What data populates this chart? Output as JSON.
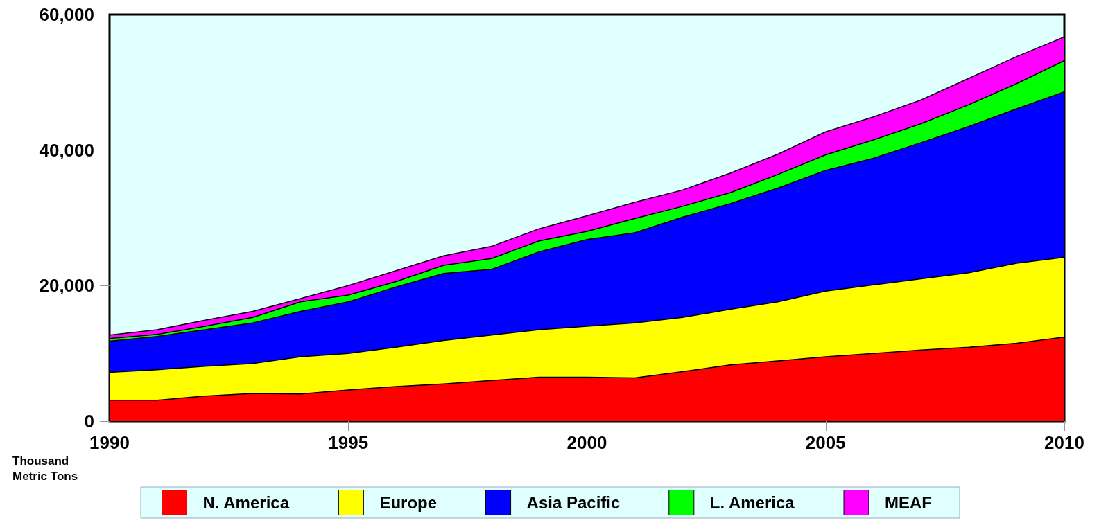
{
  "chart_data": {
    "type": "area",
    "stacked": true,
    "ylabel": "Thousand Metric Tons",
    "x": [
      1990,
      1991,
      1992,
      1993,
      1994,
      1995,
      1996,
      1997,
      1998,
      1999,
      2000,
      2001,
      2002,
      2003,
      2004,
      2005,
      2006,
      2007,
      2008,
      2009,
      2010
    ],
    "series": [
      {
        "name": "N. America",
        "color": "#ff0000",
        "values": [
          3100,
          3100,
          3700,
          4100,
          4000,
          4600,
          5100,
          5500,
          6000,
          6500,
          6500,
          6400,
          7300,
          8300,
          8900,
          9500,
          10000,
          10500,
          10900,
          11500,
          12400
        ]
      },
      {
        "name": "Europe",
        "color": "#ffff00",
        "values": [
          4100,
          4500,
          4400,
          4400,
          5500,
          5400,
          5800,
          6400,
          6700,
          7000,
          7500,
          8100,
          8000,
          8200,
          8700,
          9700,
          10100,
          10500,
          11000,
          11800,
          11800
        ]
      },
      {
        "name": "Asia Pacific",
        "color": "#0000ff",
        "values": [
          4600,
          4900,
          5400,
          6000,
          6700,
          7600,
          8900,
          9900,
          9700,
          11500,
          12800,
          13300,
          14800,
          15600,
          16800,
          17800,
          18700,
          20100,
          21600,
          22800,
          24400
        ]
      },
      {
        "name": "L. America",
        "color": "#00ff00",
        "values": [
          400,
          300,
          500,
          800,
          1400,
          1000,
          800,
          1200,
          1600,
          1600,
          1200,
          2100,
          1600,
          1600,
          2000,
          2300,
          2700,
          2800,
          3200,
          3700,
          4600
        ]
      },
      {
        "name": "MEAF",
        "color": "#ff00ff",
        "values": [
          500,
          700,
          900,
          900,
          500,
          1400,
          1600,
          1400,
          1800,
          1800,
          2300,
          2400,
          2400,
          2900,
          3000,
          3400,
          3400,
          3500,
          3900,
          4000,
          3500
        ]
      }
    ],
    "xlim": [
      1990,
      2010
    ],
    "xticks": [
      1990,
      1995,
      2000,
      2005,
      2010
    ],
    "ylim": [
      0,
      60000
    ],
    "yticks": [
      {
        "value": 0,
        "label": "0"
      },
      {
        "value": 20000,
        "label": "20,000"
      },
      {
        "value": 40000,
        "label": "40,000"
      },
      {
        "value": 60000,
        "label": "60,000"
      }
    ],
    "grid": false,
    "legend": "bottom"
  }
}
